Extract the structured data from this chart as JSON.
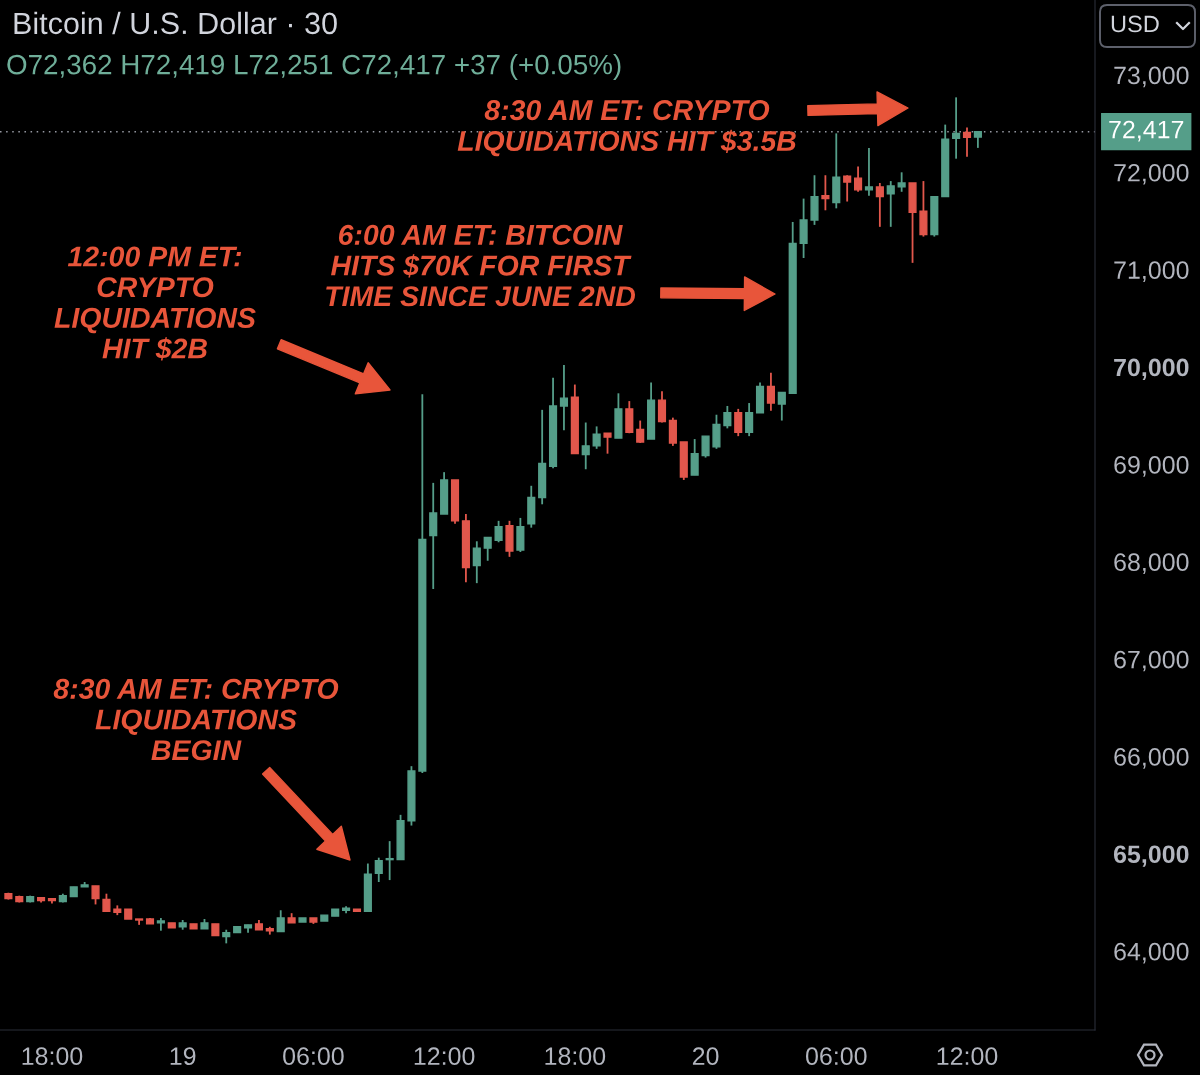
{
  "chart_data": {
    "type": "candlestick",
    "title": "Bitcoin / U.S. Dollar · 30",
    "subtitle": "O72,362 H72,419 L72,251 C72,417 +37 (+0.05%)",
    "categories": [
      null,
      null,
      null,
      null,
      "18:00",
      null,
      null,
      null,
      null,
      null,
      null,
      null,
      null,
      null,
      null,
      null,
      "19",
      null,
      null,
      null,
      null,
      null,
      null,
      null,
      null,
      null,
      null,
      null,
      "06:00",
      null,
      null,
      null,
      null,
      null,
      null,
      null,
      null,
      null,
      null,
      null,
      "12:00",
      null,
      null,
      null,
      null,
      null,
      null,
      null,
      null,
      null,
      null,
      null,
      "18:00",
      null,
      null,
      null,
      null,
      null,
      null,
      null,
      null,
      null,
      null,
      null,
      "20",
      null,
      null,
      null,
      null,
      null,
      null,
      null,
      null,
      null,
      null,
      null,
      "06:00",
      null,
      null,
      null,
      null,
      null,
      null,
      null,
      null,
      null,
      null,
      null,
      "12:00",
      null
    ],
    "ohlc": [
      [
        64590,
        64600,
        64530,
        64540
      ],
      [
        64560,
        64570,
        64500,
        64510
      ],
      [
        64510,
        64570,
        64500,
        64560
      ],
      [
        64550,
        64550,
        64500,
        64520
      ],
      [
        64540,
        64540,
        64490,
        64520
      ],
      [
        64510,
        64590,
        64500,
        64570
      ],
      [
        64560,
        64660,
        64560,
        64660
      ],
      [
        64660,
        64710,
        64660,
        64680
      ],
      [
        64670,
        64670,
        64480,
        64540
      ],
      [
        64530,
        64590,
        64410,
        64410
      ],
      [
        64430,
        64470,
        64370,
        64400
      ],
      [
        64430,
        64430,
        64330,
        64330
      ],
      [
        64330,
        64330,
        64270,
        64320
      ],
      [
        64330,
        64340,
        64280,
        64280
      ],
      [
        64290,
        64340,
        64210,
        64310
      ],
      [
        64290,
        64290,
        64240,
        64240
      ],
      [
        64250,
        64320,
        64220,
        64290
      ],
      [
        64280,
        64280,
        64230,
        64230
      ],
      [
        64230,
        64330,
        64230,
        64290
      ],
      [
        64280,
        64280,
        64160,
        64160
      ],
      [
        64150,
        64220,
        64080,
        64190
      ],
      [
        64190,
        64250,
        64190,
        64250
      ],
      [
        64240,
        64270,
        64190,
        64270
      ],
      [
        64280,
        64320,
        64220,
        64220
      ],
      [
        64230,
        64250,
        64170,
        64210
      ],
      [
        64200,
        64420,
        64200,
        64340
      ],
      [
        64340,
        64390,
        64290,
        64290
      ],
      [
        64300,
        64340,
        64300,
        64340
      ],
      [
        64340,
        64340,
        64280,
        64300
      ],
      [
        64310,
        64370,
        64310,
        64370
      ],
      [
        64360,
        64430,
        64360,
        64430
      ],
      [
        64420,
        64460,
        64390,
        64440
      ],
      [
        64430,
        64430,
        64410,
        64410
      ],
      [
        64410,
        64900,
        64410,
        64790
      ],
      [
        64800,
        64960,
        64710,
        64930
      ],
      [
        64940,
        65130,
        64730,
        64950
      ],
      [
        64940,
        65400,
        64940,
        65340
      ],
      [
        65340,
        65900,
        65290,
        65850
      ],
      [
        65850,
        69720,
        65830,
        68230
      ],
      [
        68270,
        68810,
        67720,
        68500
      ],
      [
        68490,
        68920,
        68490,
        68840
      ],
      [
        68840,
        68840,
        68390,
        68420
      ],
      [
        68420,
        68490,
        67790,
        67940
      ],
      [
        67960,
        68210,
        67780,
        68140
      ],
      [
        68140,
        68250,
        68010,
        68250
      ],
      [
        68220,
        68420,
        68200,
        68360
      ],
      [
        68370,
        68420,
        68050,
        68110
      ],
      [
        68120,
        68450,
        68100,
        68360
      ],
      [
        68390,
        68780,
        68350,
        68660
      ],
      [
        68660,
        69560,
        68590,
        69010
      ],
      [
        68980,
        69890,
        68960,
        69600
      ],
      [
        69600,
        70020,
        69350,
        69680
      ],
      [
        69690,
        69820,
        69110,
        69110
      ],
      [
        69100,
        69430,
        68950,
        69190
      ],
      [
        69190,
        69390,
        69160,
        69310
      ],
      [
        69320,
        69320,
        69110,
        69280
      ],
      [
        69270,
        69730,
        69270,
        69570
      ],
      [
        69570,
        69650,
        69320,
        69330
      ],
      [
        69360,
        69450,
        69220,
        69230
      ],
      [
        69260,
        69840,
        69260,
        69660
      ],
      [
        69660,
        69750,
        69430,
        69440
      ],
      [
        69450,
        69480,
        69190,
        69220
      ],
      [
        69230,
        69230,
        68840,
        68870
      ],
      [
        68890,
        69260,
        68890,
        69110
      ],
      [
        69090,
        69290,
        69070,
        69290
      ],
      [
        69180,
        69510,
        69160,
        69410
      ],
      [
        69400,
        69600,
        69370,
        69530
      ],
      [
        69530,
        69570,
        69290,
        69330
      ],
      [
        69330,
        69630,
        69290,
        69530
      ],
      [
        69530,
        69840,
        69530,
        69800
      ],
      [
        69800,
        69940,
        69550,
        69630
      ],
      [
        69620,
        69740,
        69450,
        69740
      ],
      [
        69730,
        71490,
        69730,
        71270
      ],
      [
        71270,
        71730,
        71120,
        71510
      ],
      [
        71510,
        71970,
        71460,
        71750
      ],
      [
        71760,
        71970,
        71610,
        71730
      ],
      [
        71690,
        72400,
        71630,
        71950
      ],
      [
        71960,
        71970,
        71700,
        71900
      ],
      [
        71940,
        72060,
        71800,
        71820
      ],
      [
        71820,
        72250,
        71760,
        71850
      ],
      [
        71850,
        71890,
        71440,
        71750
      ],
      [
        71780,
        71910,
        71440,
        71860
      ],
      [
        71850,
        72000,
        71800,
        71890
      ],
      [
        71890,
        71890,
        71070,
        71590
      ],
      [
        71600,
        71910,
        71340,
        71360
      ],
      [
        71360,
        71750,
        71340,
        71750
      ],
      [
        71750,
        72490,
        71750,
        72340
      ],
      [
        72350,
        72770,
        72140,
        72400
      ],
      [
        72410,
        72460,
        72160,
        72360
      ],
      [
        72362,
        72419,
        72251,
        72417
      ]
    ],
    "colors": [
      "#e2574c",
      "#e2574c",
      "#559e89",
      "#e2574c",
      "#e2574c",
      "#559e89",
      "#559e89",
      "#559e89",
      "#e2574c",
      "#e2574c",
      "#e2574c",
      "#e2574c",
      "#e2574c",
      "#e2574c",
      "#559e89",
      "#e2574c",
      "#559e89",
      "#e2574c",
      "#559e89",
      "#e2574c",
      "#559e89",
      "#559e89",
      "#559e89",
      "#e2574c",
      "#e2574c",
      "#559e89",
      "#e2574c",
      "#559e89",
      "#e2574c",
      "#559e89",
      "#559e89",
      "#559e89",
      "#e2574c",
      "#559e89",
      "#559e89",
      "#559e89",
      "#559e89",
      "#559e89",
      "#559e89",
      "#559e89",
      "#559e89",
      "#e2574c",
      "#e2574c",
      "#559e89",
      "#559e89",
      "#559e89",
      "#e2574c",
      "#559e89",
      "#559e89",
      "#559e89",
      "#559e89",
      "#559e89",
      "#e2574c",
      "#559e89",
      "#559e89",
      "#e2574c",
      "#559e89",
      "#e2574c",
      "#e2574c",
      "#559e89",
      "#e2574c",
      "#e2574c",
      "#e2574c",
      "#559e89",
      "#559e89",
      "#559e89",
      "#559e89",
      "#e2574c",
      "#559e89",
      "#559e89",
      "#e2574c",
      "#559e89",
      "#559e89",
      "#559e89",
      "#559e89",
      "#e2574c",
      "#559e89",
      "#e2574c",
      "#e2574c",
      "#559e89",
      "#e2574c",
      "#559e89",
      "#559e89",
      "#e2574c",
      "#e2574c",
      "#559e89",
      "#559e89",
      "#559e89",
      "#e2574c",
      "#559e89"
    ],
    "ylim": [
      63190,
      73770
    ],
    "yticks": [
      {
        "value": 64000,
        "label": "64,000"
      },
      {
        "value": 65000,
        "label": "65,000"
      },
      {
        "value": 66000,
        "label": "66,000"
      },
      {
        "value": 67000,
        "label": "67,000"
      },
      {
        "value": 68000,
        "label": "68,000"
      },
      {
        "value": 69000,
        "label": "69,000"
      },
      {
        "value": 70000,
        "label": "70,000"
      },
      {
        "value": 71000,
        "label": "71,000"
      },
      {
        "value": 72000,
        "label": "72,000"
      },
      {
        "value": 73000,
        "label": "73,000"
      }
    ],
    "ref_lines": [
      {
        "axis": "y",
        "value": 72417,
        "label": "72,417",
        "color": "#9598a1",
        "line_style": "dotted"
      }
    ],
    "annotations": [
      "8:30 AM ET: CRYPTO\nLIQUIDATIONS HIT $3.5B",
      "6:00 AM ET: BITCOIN\nHITS $70K FOR FIRST\nTIME SINCE JUNE 2ND",
      "12:00 PM ET:\nCRYPTO\nLIQUIDATIONS\nHIT $2B",
      "8:30 AM ET: CRYPTO\nLIQUIDATIONS\nBEGIN",
      "USD"
    ]
  }
}
